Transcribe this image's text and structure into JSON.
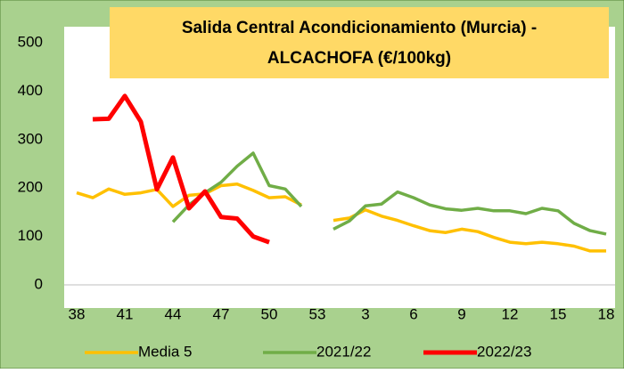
{
  "chart_data": {
    "type": "line",
    "title": "Salida Central Acondicionamiento (Murcia)  -",
    "subtitle": "ALCACHOFA (€/100kg)",
    "categories": [
      38,
      null,
      null,
      41,
      null,
      null,
      44,
      null,
      null,
      47,
      null,
      null,
      50,
      null,
      null,
      53,
      null,
      null,
      3,
      null,
      null,
      6,
      null,
      null,
      9,
      null,
      null,
      12,
      null,
      null,
      15,
      null,
      null,
      18
    ],
    "series": [
      {
        "name": "Media 5",
        "color": "#ffc000",
        "values": [
          190,
          180,
          198,
          187,
          190,
          197,
          162,
          185,
          188,
          205,
          208,
          195,
          180,
          182,
          165,
          null,
          133,
          138,
          155,
          142,
          133,
          122,
          112,
          108,
          115,
          110,
          98,
          88,
          85,
          88,
          85,
          80,
          70,
          70
        ]
      },
      {
        "name": "2021/22",
        "color": "#70ad47",
        "values": [
          null,
          null,
          null,
          null,
          null,
          null,
          130,
          165,
          190,
          212,
          245,
          272,
          205,
          198,
          162,
          null,
          115,
          132,
          163,
          167,
          192,
          180,
          165,
          157,
          154,
          158,
          153,
          153,
          147,
          158,
          153,
          127,
          112,
          105
        ]
      },
      {
        "name": "2022/23",
        "color": "#ff0000",
        "values": [
          null,
          342,
          343,
          390,
          337,
          197,
          263,
          158,
          193,
          140,
          137,
          100,
          88,
          null,
          null,
          null,
          null,
          null,
          null,
          null,
          null,
          null,
          null,
          null,
          null,
          null,
          null,
          null,
          null,
          null,
          null,
          null,
          null,
          null
        ]
      }
    ],
    "ylim": [
      0,
      500
    ],
    "yticks": [
      0,
      100,
      200,
      300,
      400,
      500
    ],
    "grid": false,
    "legend": "bottom"
  }
}
